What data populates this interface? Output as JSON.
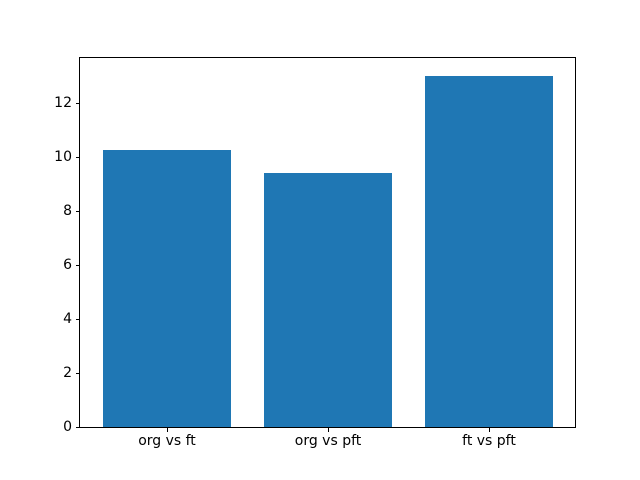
{
  "chart_data": {
    "type": "bar",
    "title": "",
    "xlabel": "",
    "ylabel": "",
    "categories": [
      "org vs ft",
      "org vs pft",
      "ft vs pft"
    ],
    "values": [
      10.25,
      9.4,
      13.0
    ],
    "yticks": [
      0,
      2,
      4,
      6,
      8,
      10,
      12
    ],
    "ylim": [
      0,
      13.65
    ],
    "xlim": [
      -0.54,
      2.54
    ],
    "bar_width": 0.8,
    "bar_color": "#1f77b4",
    "axis_color": "#000000",
    "background_color": "#ffffff",
    "grid": false,
    "legend": null
  }
}
